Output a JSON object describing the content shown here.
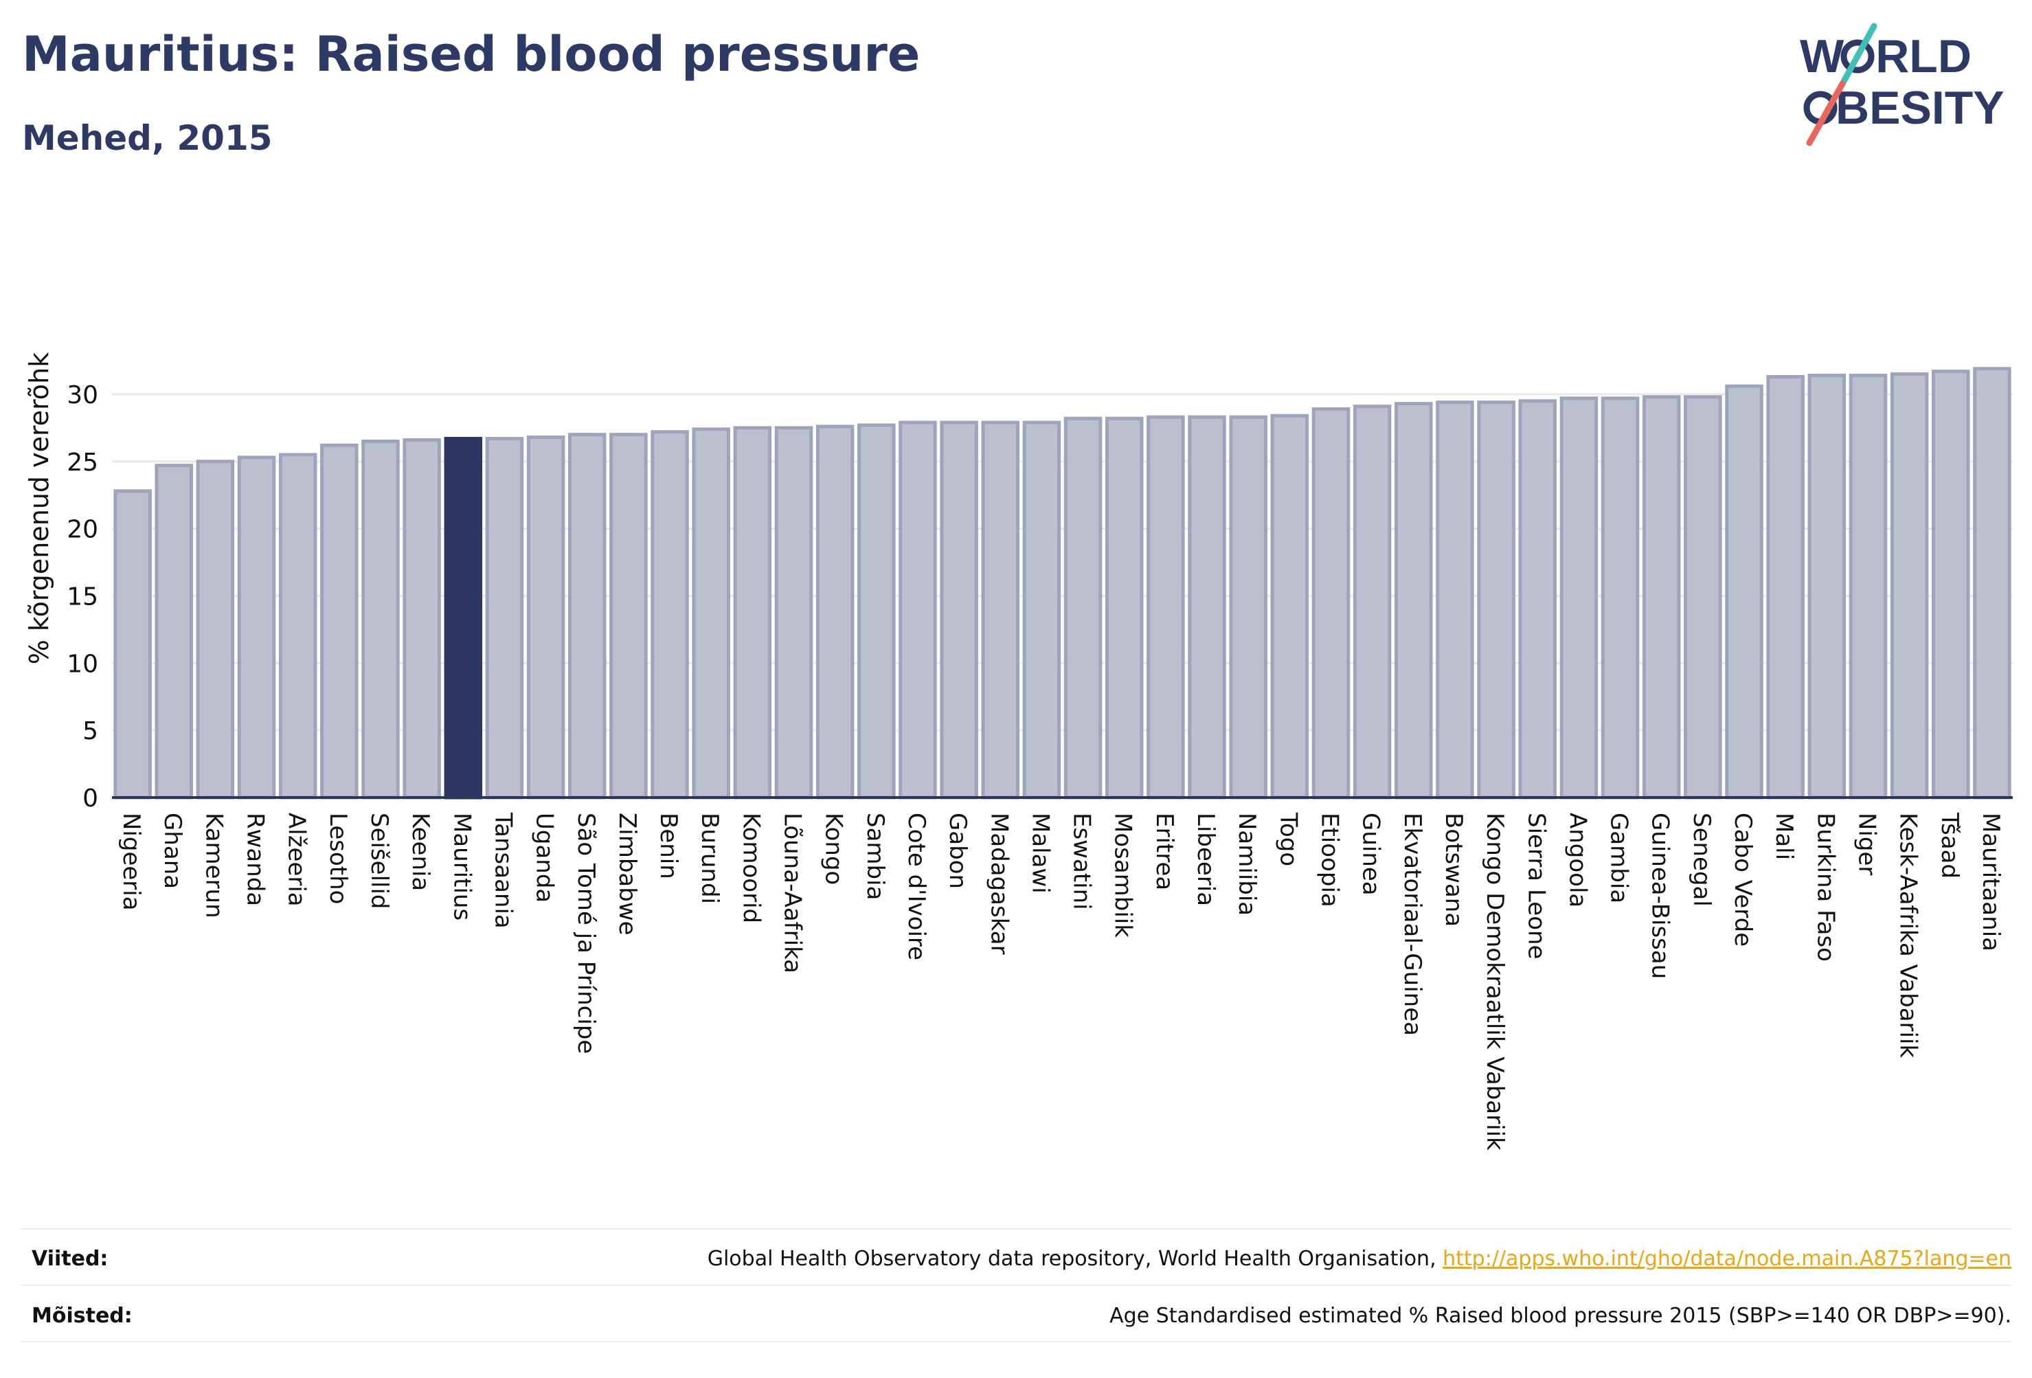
{
  "header": {
    "title": "Mauritius: Raised blood pressure",
    "subtitle": "Mehed, 2015"
  },
  "logo": {
    "line1": "W",
    "line1_rest": "RLD",
    "line2": "BESITY",
    "accent_colors": [
      "#3fbfb6",
      "#e8665a"
    ],
    "text_color": "#2d3a66"
  },
  "chart_data": {
    "type": "bar",
    "ylabel": "% kõrgenenud vererõhk",
    "ylim": [
      0,
      32.5
    ],
    "yticks": [
      0,
      5,
      10,
      15,
      20,
      25,
      30
    ],
    "grid": true,
    "highlight_category": "Mauritius",
    "colors": {
      "bar": "#bcc0ce",
      "bar_edge": "#9ea4bb",
      "highlight": "#2d3561",
      "axis": "#2d3561",
      "grid": "#e8e9ee"
    },
    "categories": [
      "Nigeeria",
      "Ghana",
      "Kamerun",
      "Rwanda",
      "Alžeeria",
      "Lesotho",
      "Seišellid",
      "Keenia",
      "Mauritius",
      "Tansaania",
      "Uganda",
      "São Tomé ja Príncipe",
      "Zimbabwe",
      "Benin",
      "Burundi",
      "Komoorid",
      "Lõuna-Aafrika",
      "Kongo",
      "Sambia",
      "Cote d'Ivoire",
      "Gabon",
      "Madagaskar",
      "Malawi",
      "Eswatini",
      "Mosambiik",
      "Eritrea",
      "Libeeria",
      "Namiibia",
      "Togo",
      "Etioopia",
      "Guinea",
      "Ekvatoriaal-Guinea",
      "Botswana",
      "Kongo Demokraatlik Vabariik",
      "Sierra Leone",
      "Angoola",
      "Gambia",
      "Guinea-Bissau",
      "Senegal",
      "Cabo Verde",
      "Mali",
      "Burkina Faso",
      "Niger",
      "Kesk-Aafrika Vabariik",
      "Tšaad",
      "Mauritaania"
    ],
    "values": [
      22.8,
      24.7,
      25.0,
      25.3,
      25.5,
      26.2,
      26.5,
      26.6,
      26.7,
      26.7,
      26.8,
      27.0,
      27.0,
      27.2,
      27.4,
      27.5,
      27.5,
      27.6,
      27.7,
      27.9,
      27.9,
      27.9,
      27.9,
      28.2,
      28.2,
      28.3,
      28.3,
      28.3,
      28.4,
      28.9,
      29.1,
      29.3,
      29.4,
      29.4,
      29.5,
      29.7,
      29.7,
      29.8,
      29.8,
      30.6,
      31.3,
      31.4,
      31.4,
      31.5,
      31.7,
      31.9
    ]
  },
  "notes": {
    "sources_label": "Viited:",
    "sources_text": "Global Health Observatory data repository, World Health Organisation, ",
    "sources_link": "http://apps.who.int/gho/data/node.main.A875?lang=en",
    "definitions_label": "Mõisted:",
    "definitions_text": "Age Standardised estimated % Raised blood pressure 2015 (SBP>=140 OR DBP>=90)."
  }
}
